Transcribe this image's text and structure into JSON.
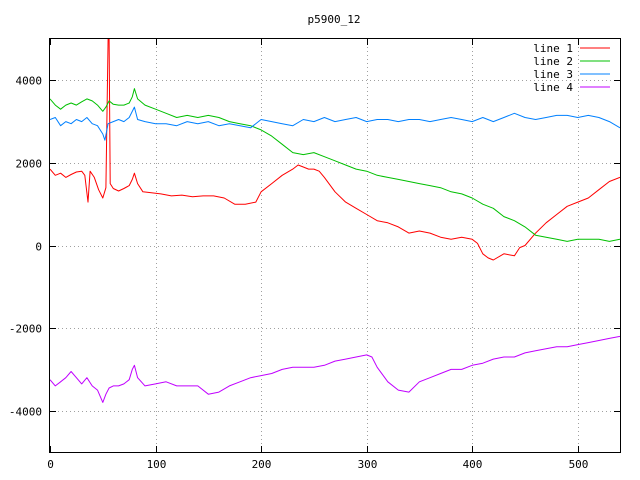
{
  "chart_data": {
    "type": "line",
    "title": "p5900_12",
    "xlabel": "",
    "ylabel": "",
    "xlim": [
      0,
      540
    ],
    "ylim": [
      -5000,
      5000
    ],
    "xticks": [
      0,
      100,
      200,
      300,
      400,
      500
    ],
    "yticks": [
      -4000,
      -2000,
      0,
      2000,
      4000
    ],
    "xtick_labels": [
      "0",
      "100",
      "200",
      "300",
      "400",
      "500"
    ],
    "ytick_labels": [
      "-4000",
      "-2000",
      "0",
      "2000",
      "4000"
    ],
    "grid": true,
    "legend_position": "top-right",
    "series": [
      {
        "name": "line 1",
        "color": "#ff0000",
        "points": [
          [
            0,
            1850
          ],
          [
            5,
            1700
          ],
          [
            10,
            1750
          ],
          [
            15,
            1650
          ],
          [
            20,
            1720
          ],
          [
            25,
            1780
          ],
          [
            30,
            1800
          ],
          [
            33,
            1700
          ],
          [
            36,
            1050
          ],
          [
            38,
            1800
          ],
          [
            42,
            1650
          ],
          [
            46,
            1350
          ],
          [
            50,
            1150
          ],
          [
            53,
            1400
          ],
          [
            55,
            5000
          ],
          [
            56,
            5000
          ],
          [
            57,
            1500
          ],
          [
            60,
            1380
          ],
          [
            65,
            1320
          ],
          [
            70,
            1380
          ],
          [
            75,
            1450
          ],
          [
            78,
            1600
          ],
          [
            80,
            1750
          ],
          [
            83,
            1500
          ],
          [
            88,
            1300
          ],
          [
            95,
            1280
          ],
          [
            105,
            1250
          ],
          [
            115,
            1200
          ],
          [
            125,
            1220
          ],
          [
            135,
            1180
          ],
          [
            145,
            1200
          ],
          [
            155,
            1200
          ],
          [
            165,
            1150
          ],
          [
            175,
            1000
          ],
          [
            185,
            1000
          ],
          [
            195,
            1050
          ],
          [
            200,
            1300
          ],
          [
            210,
            1500
          ],
          [
            220,
            1700
          ],
          [
            230,
            1850
          ],
          [
            235,
            1950
          ],
          [
            240,
            1900
          ],
          [
            245,
            1850
          ],
          [
            250,
            1850
          ],
          [
            255,
            1800
          ],
          [
            260,
            1650
          ],
          [
            270,
            1300
          ],
          [
            280,
            1050
          ],
          [
            290,
            900
          ],
          [
            300,
            750
          ],
          [
            310,
            600
          ],
          [
            320,
            550
          ],
          [
            330,
            450
          ],
          [
            340,
            300
          ],
          [
            350,
            350
          ],
          [
            360,
            300
          ],
          [
            370,
            200
          ],
          [
            380,
            150
          ],
          [
            390,
            200
          ],
          [
            400,
            150
          ],
          [
            405,
            50
          ],
          [
            410,
            -200
          ],
          [
            415,
            -300
          ],
          [
            420,
            -350
          ],
          [
            430,
            -200
          ],
          [
            440,
            -250
          ],
          [
            445,
            -50
          ],
          [
            450,
            0
          ],
          [
            460,
            300
          ],
          [
            470,
            550
          ],
          [
            480,
            750
          ],
          [
            490,
            950
          ],
          [
            500,
            1050
          ],
          [
            510,
            1150
          ],
          [
            520,
            1350
          ],
          [
            530,
            1550
          ],
          [
            540,
            1650
          ]
        ]
      },
      {
        "name": "line 2",
        "color": "#00c000",
        "points": [
          [
            0,
            3550
          ],
          [
            5,
            3400
          ],
          [
            10,
            3300
          ],
          [
            15,
            3400
          ],
          [
            20,
            3450
          ],
          [
            25,
            3400
          ],
          [
            30,
            3480
          ],
          [
            35,
            3550
          ],
          [
            40,
            3500
          ],
          [
            45,
            3400
          ],
          [
            50,
            3250
          ],
          [
            53,
            3350
          ],
          [
            56,
            3500
          ],
          [
            60,
            3420
          ],
          [
            65,
            3400
          ],
          [
            70,
            3400
          ],
          [
            75,
            3450
          ],
          [
            78,
            3600
          ],
          [
            80,
            3800
          ],
          [
            83,
            3550
          ],
          [
            90,
            3400
          ],
          [
            100,
            3300
          ],
          [
            110,
            3200
          ],
          [
            120,
            3100
          ],
          [
            130,
            3150
          ],
          [
            140,
            3100
          ],
          [
            150,
            3150
          ],
          [
            160,
            3100
          ],
          [
            170,
            3000
          ],
          [
            180,
            2950
          ],
          [
            190,
            2900
          ],
          [
            200,
            2800
          ],
          [
            210,
            2650
          ],
          [
            220,
            2450
          ],
          [
            230,
            2250
          ],
          [
            240,
            2200
          ],
          [
            250,
            2250
          ],
          [
            260,
            2150
          ],
          [
            270,
            2050
          ],
          [
            280,
            1950
          ],
          [
            290,
            1850
          ],
          [
            300,
            1800
          ],
          [
            310,
            1700
          ],
          [
            320,
            1650
          ],
          [
            330,
            1600
          ],
          [
            340,
            1550
          ],
          [
            350,
            1500
          ],
          [
            360,
            1450
          ],
          [
            370,
            1400
          ],
          [
            380,
            1300
          ],
          [
            390,
            1250
          ],
          [
            400,
            1150
          ],
          [
            410,
            1000
          ],
          [
            420,
            900
          ],
          [
            430,
            700
          ],
          [
            440,
            600
          ],
          [
            450,
            450
          ],
          [
            460,
            250
          ],
          [
            470,
            200
          ],
          [
            480,
            150
          ],
          [
            490,
            100
          ],
          [
            500,
            150
          ],
          [
            510,
            150
          ],
          [
            520,
            150
          ],
          [
            530,
            100
          ],
          [
            540,
            150
          ]
        ]
      },
      {
        "name": "line 3",
        "color": "#0080ff",
        "points": [
          [
            0,
            3050
          ],
          [
            5,
            3100
          ],
          [
            10,
            2900
          ],
          [
            15,
            3000
          ],
          [
            20,
            2950
          ],
          [
            25,
            3050
          ],
          [
            30,
            3000
          ],
          [
            35,
            3100
          ],
          [
            40,
            2950
          ],
          [
            45,
            2900
          ],
          [
            50,
            2700
          ],
          [
            52,
            2550
          ],
          [
            55,
            2950
          ],
          [
            60,
            3000
          ],
          [
            65,
            3050
          ],
          [
            70,
            3000
          ],
          [
            75,
            3100
          ],
          [
            80,
            3350
          ],
          [
            83,
            3050
          ],
          [
            90,
            3000
          ],
          [
            100,
            2950
          ],
          [
            110,
            2950
          ],
          [
            120,
            2900
          ],
          [
            130,
            3000
          ],
          [
            140,
            2950
          ],
          [
            150,
            3000
          ],
          [
            160,
            2900
          ],
          [
            170,
            2950
          ],
          [
            180,
            2900
          ],
          [
            190,
            2850
          ],
          [
            200,
            3050
          ],
          [
            210,
            3000
          ],
          [
            220,
            2950
          ],
          [
            230,
            2900
          ],
          [
            240,
            3050
          ],
          [
            250,
            3000
          ],
          [
            260,
            3100
          ],
          [
            270,
            3000
          ],
          [
            280,
            3050
          ],
          [
            290,
            3100
          ],
          [
            300,
            3000
          ],
          [
            310,
            3050
          ],
          [
            320,
            3050
          ],
          [
            330,
            3000
          ],
          [
            340,
            3050
          ],
          [
            350,
            3050
          ],
          [
            360,
            3000
          ],
          [
            370,
            3050
          ],
          [
            380,
            3100
          ],
          [
            390,
            3050
          ],
          [
            400,
            3000
          ],
          [
            410,
            3100
          ],
          [
            420,
            3000
          ],
          [
            430,
            3100
          ],
          [
            440,
            3200
          ],
          [
            450,
            3100
          ],
          [
            460,
            3050
          ],
          [
            470,
            3100
          ],
          [
            480,
            3150
          ],
          [
            490,
            3150
          ],
          [
            500,
            3100
          ],
          [
            510,
            3150
          ],
          [
            520,
            3100
          ],
          [
            530,
            3000
          ],
          [
            540,
            2850
          ]
        ]
      },
      {
        "name": "line 4",
        "color": "#c000ff",
        "points": [
          [
            0,
            -3250
          ],
          [
            5,
            -3400
          ],
          [
            10,
            -3300
          ],
          [
            15,
            -3200
          ],
          [
            20,
            -3050
          ],
          [
            25,
            -3200
          ],
          [
            30,
            -3350
          ],
          [
            35,
            -3200
          ],
          [
            40,
            -3400
          ],
          [
            45,
            -3500
          ],
          [
            50,
            -3800
          ],
          [
            53,
            -3600
          ],
          [
            56,
            -3450
          ],
          [
            60,
            -3400
          ],
          [
            65,
            -3400
          ],
          [
            70,
            -3350
          ],
          [
            75,
            -3250
          ],
          [
            78,
            -3000
          ],
          [
            80,
            -2900
          ],
          [
            83,
            -3200
          ],
          [
            90,
            -3400
          ],
          [
            100,
            -3350
          ],
          [
            110,
            -3300
          ],
          [
            120,
            -3400
          ],
          [
            130,
            -3400
          ],
          [
            140,
            -3400
          ],
          [
            150,
            -3600
          ],
          [
            160,
            -3550
          ],
          [
            170,
            -3400
          ],
          [
            180,
            -3300
          ],
          [
            190,
            -3200
          ],
          [
            200,
            -3150
          ],
          [
            210,
            -3100
          ],
          [
            220,
            -3000
          ],
          [
            230,
            -2950
          ],
          [
            240,
            -2950
          ],
          [
            250,
            -2950
          ],
          [
            260,
            -2900
          ],
          [
            270,
            -2800
          ],
          [
            280,
            -2750
          ],
          [
            290,
            -2700
          ],
          [
            300,
            -2650
          ],
          [
            305,
            -2700
          ],
          [
            310,
            -2950
          ],
          [
            320,
            -3300
          ],
          [
            330,
            -3500
          ],
          [
            340,
            -3550
          ],
          [
            350,
            -3300
          ],
          [
            360,
            -3200
          ],
          [
            370,
            -3100
          ],
          [
            380,
            -3000
          ],
          [
            390,
            -3000
          ],
          [
            400,
            -2900
          ],
          [
            410,
            -2850
          ],
          [
            420,
            -2750
          ],
          [
            430,
            -2700
          ],
          [
            440,
            -2700
          ],
          [
            450,
            -2600
          ],
          [
            460,
            -2550
          ],
          [
            470,
            -2500
          ],
          [
            480,
            -2450
          ],
          [
            490,
            -2450
          ],
          [
            500,
            -2400
          ],
          [
            510,
            -2350
          ],
          [
            520,
            -2300
          ],
          [
            530,
            -2250
          ],
          [
            540,
            -2200
          ]
        ]
      }
    ]
  }
}
